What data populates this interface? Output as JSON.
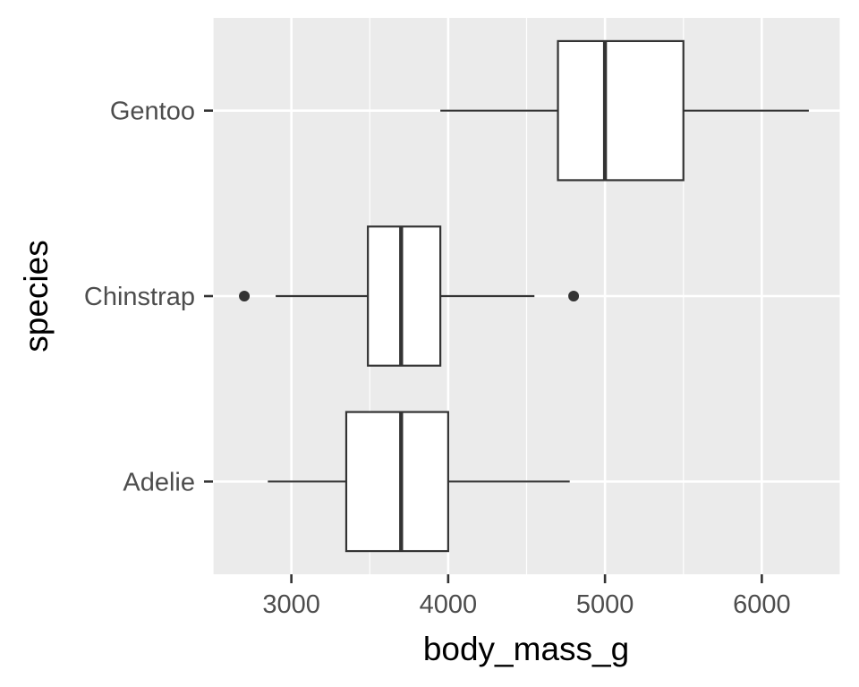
{
  "chart_data": {
    "type": "boxplot",
    "orientation": "horizontal",
    "xlabel": "body_mass_g",
    "ylabel": "species",
    "xlim": [
      2500,
      6500
    ],
    "x_ticks": [
      3000,
      4000,
      5000,
      6000
    ],
    "x_minor_ticks": [
      2500,
      3500,
      4500,
      5500,
      6500
    ],
    "grid": true,
    "panel_background": "#ebebeb",
    "grid_color": "#ffffff",
    "box_fill": "#ffffff",
    "line_color": "#333333",
    "categories": [
      "Adelie",
      "Chinstrap",
      "Gentoo"
    ],
    "boxes": [
      {
        "category": "Adelie",
        "whisker_low": 2850,
        "q1": 3350,
        "median": 3700,
        "q3": 4000,
        "whisker_high": 4775,
        "outliers": []
      },
      {
        "category": "Chinstrap",
        "whisker_low": 2900,
        "q1": 3488,
        "median": 3700,
        "q3": 3950,
        "whisker_high": 4550,
        "outliers": [
          2700,
          4800
        ]
      },
      {
        "category": "Gentoo",
        "whisker_low": 3950,
        "q1": 4700,
        "median": 5000,
        "q3": 5500,
        "whisker_high": 6300,
        "outliers": []
      }
    ]
  }
}
